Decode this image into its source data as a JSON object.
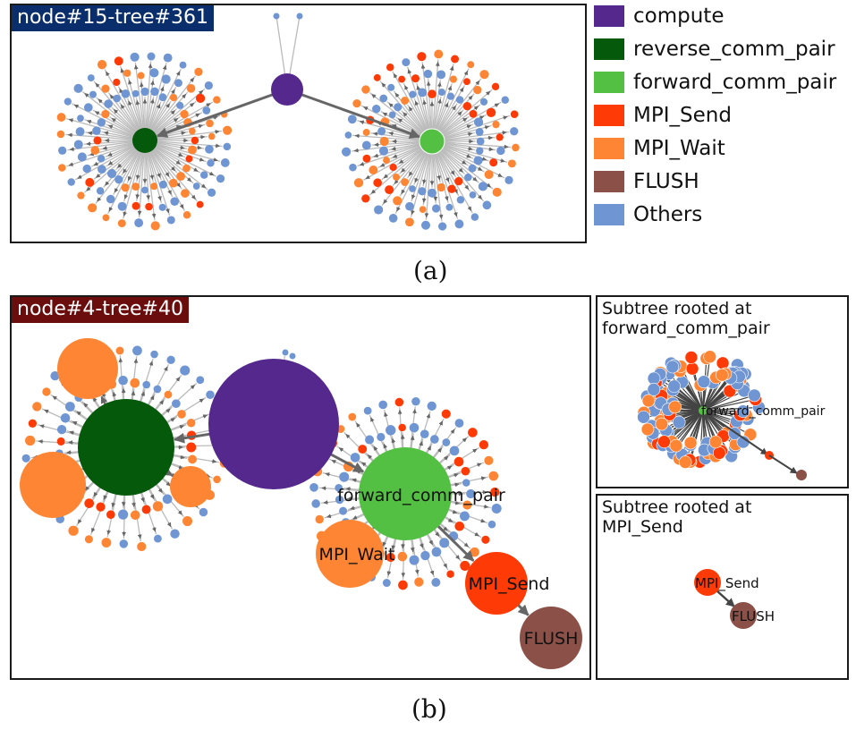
{
  "colors": {
    "compute": "#54288c",
    "reverse_comm_pair": "#05590a",
    "forward_comm_pair": "#54c043",
    "MPI_Send": "#fe3a06",
    "MPI_Wait": "#fe8534",
    "FLUSH": "#8b5047",
    "Others": "#6f95d3",
    "edge": "#666666",
    "edge_light": "#bbbbbb"
  },
  "legend": [
    {
      "label": "compute",
      "color": "#54288c"
    },
    {
      "label": "reverse_comm_pair",
      "color": "#05590a"
    },
    {
      "label": "forward_comm_pair",
      "color": "#54c043"
    },
    {
      "label": "MPI_Send",
      "color": "#fe3a06"
    },
    {
      "label": "MPI_Wait",
      "color": "#fe8534"
    },
    {
      "label": "FLUSH",
      "color": "#8b5047"
    },
    {
      "label": "Others",
      "color": "#6f95d3"
    }
  ],
  "panel_a": {
    "tag": "node#15-tree#361",
    "tag_color": "#0a2e6b",
    "caption": "(a)"
  },
  "panel_b": {
    "tag": "node#4-tree#40",
    "tag_color": "#6b0d0d",
    "caption": "(b)",
    "labels": {
      "forward_comm_pair": "forward_comm_pair",
      "MPI_Wait": "MPI_Wait",
      "MPI_Send": "MPI_Send",
      "FLUSH": "FLUSH"
    }
  },
  "subtree_forward": {
    "title": "Subtree rooted at\nforward_comm_pair",
    "label": "forward_comm_pair"
  },
  "subtree_send": {
    "title": "Subtree rooted at\nMPI_Send",
    "send_label": "MPI_Send",
    "flush_label": "FLUSH"
  }
}
